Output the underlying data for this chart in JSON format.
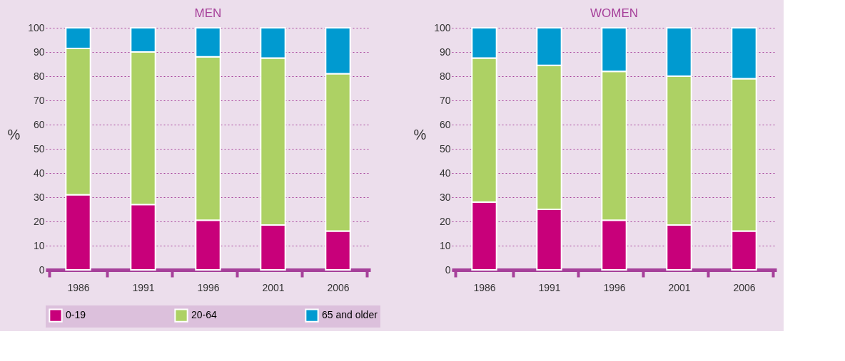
{
  "chart_data": [
    {
      "type": "bar",
      "title": "MEN",
      "ylabel": "%",
      "stacked": true,
      "categories": [
        "1986",
        "1991",
        "1996",
        "2001",
        "2006"
      ],
      "ylim": [
        0,
        100
      ],
      "yticks": [
        0,
        10,
        20,
        30,
        40,
        50,
        60,
        70,
        80,
        90,
        100
      ],
      "grid": "y",
      "legend": "bottom",
      "series": [
        {
          "name": "0-19",
          "color": "#c8007a",
          "values": [
            31,
            27,
            20.5,
            18.5,
            16
          ]
        },
        {
          "name": "20-64",
          "color": "#add164",
          "values": [
            60.5,
            63,
            67.5,
            69,
            65
          ]
        },
        {
          "name": "65 and older",
          "color": "#009ad0",
          "values": [
            8.5,
            10,
            12,
            12.5,
            19
          ]
        }
      ]
    },
    {
      "type": "bar",
      "title": "WOMEN",
      "ylabel": "%",
      "stacked": true,
      "categories": [
        "1986",
        "1991",
        "1996",
        "2001",
        "2006"
      ],
      "ylim": [
        0,
        100
      ],
      "yticks": [
        0,
        10,
        20,
        30,
        40,
        50,
        60,
        70,
        80,
        90,
        100
      ],
      "grid": "y",
      "legend": "bottom",
      "series": [
        {
          "name": "0-19",
          "color": "#c8007a",
          "values": [
            28,
            25,
            20.5,
            18.5,
            16
          ]
        },
        {
          "name": "20-64",
          "color": "#add164",
          "values": [
            59.5,
            59.5,
            61.5,
            61.5,
            63
          ]
        },
        {
          "name": "65 and older",
          "color": "#009ad0",
          "values": [
            12.5,
            15.5,
            18,
            20,
            21
          ]
        }
      ]
    }
  ]
}
